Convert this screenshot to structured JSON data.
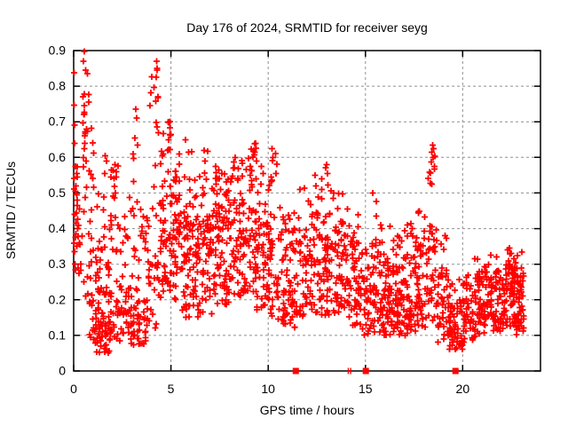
{
  "colors": {
    "marker": "#ff0000",
    "grid": "#8f8f8f",
    "axis": "#000000",
    "background": "#ffffff",
    "text": "#000000"
  },
  "chart_data": {
    "type": "scatter",
    "title": "Day 176 of 2024, SRMTID for receiver seyg",
    "xlabel": "GPS time / hours",
    "ylabel": "SRMTID / TECUs",
    "xlim": [
      0,
      24
    ],
    "ylim": [
      0,
      0.9
    ],
    "grid": true,
    "legend": "none",
    "marker": "plus",
    "marker_color": "#ff0000",
    "xticks": [
      {
        "label": "0",
        "v": 0
      },
      {
        "label": "5",
        "v": 5
      },
      {
        "label": "10",
        "v": 10
      },
      {
        "label": "15",
        "v": 15
      },
      {
        "label": "20",
        "v": 20
      }
    ],
    "yticks": [
      {
        "label": "0",
        "v": 0.0
      },
      {
        "label": "0.1",
        "v": 0.1
      },
      {
        "label": "0.2",
        "v": 0.2
      },
      {
        "label": "0.3",
        "v": 0.3
      },
      {
        "label": "0.4",
        "v": 0.4
      },
      {
        "label": "0.5",
        "v": 0.5
      },
      {
        "label": "0.6",
        "v": 0.6
      },
      {
        "label": "0.7",
        "v": 0.7
      },
      {
        "label": "0.8",
        "v": 0.8
      },
      {
        "label": "0.9",
        "v": 0.9
      }
    ],
    "axis_markers": {
      "squares_x_hours": [
        11.42,
        15.02,
        19.63
      ],
      "tick_pair_x_hours": [
        14.12,
        14.24
      ]
    },
    "point_generation": {
      "seed": 176,
      "columns_per_bin": 6,
      "bins": [
        [
          0.0,
          0.25,
          14,
          [
            [
              1.0,
              0.28,
              0.58
            ]
          ]
        ],
        [
          0.25,
          0.45,
          8,
          [
            [
              0.6,
              0.25,
              0.45
            ],
            [
              0.4,
              0.45,
              0.62
            ]
          ]
        ],
        [
          0.45,
          0.8,
          22,
          [
            [
              0.45,
              0.55,
              0.9
            ],
            [
              0.3,
              0.3,
              0.55
            ],
            [
              0.25,
              0.2,
              0.3
            ]
          ]
        ],
        [
          0.8,
          1.1,
          25,
          [
            [
              0.3,
              0.2,
              0.4
            ],
            [
              0.5,
              0.08,
              0.2
            ],
            [
              0.2,
              0.4,
              0.76
            ]
          ]
        ],
        [
          1.1,
          1.5,
          45,
          [
            [
              0.7,
              0.05,
              0.18
            ],
            [
              0.25,
              0.18,
              0.35
            ],
            [
              0.05,
              0.35,
              0.5
            ]
          ]
        ],
        [
          1.5,
          1.9,
          45,
          [
            [
              0.6,
              0.05,
              0.17
            ],
            [
              0.3,
              0.17,
              0.33
            ],
            [
              0.1,
              0.33,
              0.61
            ]
          ]
        ],
        [
          1.9,
          2.4,
          40,
          [
            [
              0.55,
              0.08,
              0.22
            ],
            [
              0.3,
              0.22,
              0.4
            ],
            [
              0.15,
              0.4,
              0.58
            ]
          ]
        ],
        [
          2.4,
          2.9,
          32,
          [
            [
              0.6,
              0.1,
              0.25
            ],
            [
              0.35,
              0.25,
              0.4
            ],
            [
              0.05,
              0.4,
              0.5
            ]
          ]
        ],
        [
          2.9,
          3.4,
          48,
          [
            [
              0.6,
              0.07,
              0.2
            ],
            [
              0.25,
              0.2,
              0.35
            ],
            [
              0.1,
              0.35,
              0.55
            ],
            [
              0.05,
              0.55,
              0.74
            ]
          ]
        ],
        [
          3.4,
          3.9,
          36,
          [
            [
              0.55,
              0.06,
              0.2
            ],
            [
              0.3,
              0.2,
              0.38
            ],
            [
              0.15,
              0.38,
              0.52
            ]
          ]
        ],
        [
          3.9,
          4.45,
          30,
          [
            [
              0.4,
              0.12,
              0.3
            ],
            [
              0.3,
              0.3,
              0.55
            ],
            [
              0.3,
              0.55,
              0.87
            ]
          ]
        ],
        [
          4.45,
          5.0,
          60,
          [
            [
              0.2,
              0.2,
              0.32
            ],
            [
              0.5,
              0.32,
              0.52
            ],
            [
              0.3,
              0.52,
              0.7
            ]
          ]
        ],
        [
          5.0,
          5.55,
          55,
          [
            [
              0.25,
              0.2,
              0.32
            ],
            [
              0.55,
              0.32,
              0.5
            ],
            [
              0.2,
              0.5,
              0.66
            ]
          ]
        ],
        [
          5.55,
          6.1,
          50,
          [
            [
              0.3,
              0.15,
              0.28
            ],
            [
              0.5,
              0.28,
              0.45
            ],
            [
              0.2,
              0.45,
              0.64
            ]
          ]
        ],
        [
          6.1,
          6.6,
          45,
          [
            [
              0.35,
              0.15,
              0.27
            ],
            [
              0.5,
              0.27,
              0.42
            ],
            [
              0.15,
              0.42,
              0.55
            ]
          ]
        ],
        [
          6.6,
          7.1,
          48,
          [
            [
              0.3,
              0.16,
              0.28
            ],
            [
              0.5,
              0.28,
              0.45
            ],
            [
              0.2,
              0.45,
              0.62
            ]
          ]
        ],
        [
          7.1,
          7.6,
          48,
          [
            [
              0.3,
              0.18,
              0.3
            ],
            [
              0.55,
              0.3,
              0.47
            ],
            [
              0.15,
              0.47,
              0.58
            ]
          ]
        ],
        [
          7.6,
          8.2,
          55,
          [
            [
              0.35,
              0.18,
              0.3
            ],
            [
              0.5,
              0.3,
              0.45
            ],
            [
              0.15,
              0.45,
              0.56
            ]
          ]
        ],
        [
          8.2,
          8.8,
          58,
          [
            [
              0.3,
              0.2,
              0.32
            ],
            [
              0.5,
              0.32,
              0.48
            ],
            [
              0.2,
              0.48,
              0.6
            ]
          ]
        ],
        [
          8.8,
          9.4,
          52,
          [
            [
              0.3,
              0.2,
              0.32
            ],
            [
              0.5,
              0.32,
              0.48
            ],
            [
              0.2,
              0.48,
              0.64
            ]
          ]
        ],
        [
          9.4,
          10.0,
          50,
          [
            [
              0.35,
              0.17,
              0.3
            ],
            [
              0.5,
              0.3,
              0.45
            ],
            [
              0.15,
              0.45,
              0.58
            ]
          ]
        ],
        [
          10.0,
          10.5,
          42,
          [
            [
              0.35,
              0.15,
              0.28
            ],
            [
              0.45,
              0.28,
              0.45
            ],
            [
              0.2,
              0.45,
              0.63
            ]
          ]
        ],
        [
          10.5,
          11.0,
          40,
          [
            [
              0.45,
              0.13,
              0.27
            ],
            [
              0.45,
              0.27,
              0.4
            ],
            [
              0.1,
              0.4,
              0.47
            ]
          ]
        ],
        [
          11.0,
          11.6,
          42,
          [
            [
              0.45,
              0.12,
              0.26
            ],
            [
              0.45,
              0.26,
              0.4
            ],
            [
              0.1,
              0.4,
              0.5
            ]
          ]
        ],
        [
          11.6,
          12.2,
          44,
          [
            [
              0.4,
              0.15,
              0.28
            ],
            [
              0.5,
              0.28,
              0.42
            ],
            [
              0.1,
              0.42,
              0.52
            ]
          ]
        ],
        [
          12.2,
          12.8,
          46,
          [
            [
              0.4,
              0.15,
              0.28
            ],
            [
              0.45,
              0.28,
              0.42
            ],
            [
              0.15,
              0.42,
              0.55
            ]
          ]
        ],
        [
          12.8,
          13.4,
          50,
          [
            [
              0.4,
              0.15,
              0.28
            ],
            [
              0.45,
              0.28,
              0.42
            ],
            [
              0.15,
              0.42,
              0.58
            ]
          ]
        ],
        [
          13.4,
          14.0,
          52,
          [
            [
              0.45,
              0.15,
              0.28
            ],
            [
              0.45,
              0.28,
              0.42
            ],
            [
              0.1,
              0.42,
              0.5
            ]
          ]
        ],
        [
          14.0,
          14.6,
          45,
          [
            [
              0.5,
              0.12,
              0.25
            ],
            [
              0.4,
              0.25,
              0.38
            ],
            [
              0.1,
              0.38,
              0.46
            ]
          ]
        ],
        [
          14.6,
          15.2,
          45,
          [
            [
              0.55,
              0.1,
              0.24
            ],
            [
              0.38,
              0.24,
              0.36
            ],
            [
              0.07,
              0.36,
              0.44
            ]
          ]
        ],
        [
          15.2,
          15.8,
          50,
          [
            [
              0.55,
              0.1,
              0.24
            ],
            [
              0.35,
              0.24,
              0.35
            ],
            [
              0.1,
              0.35,
              0.5
            ]
          ]
        ],
        [
          15.8,
          16.4,
          55,
          [
            [
              0.6,
              0.1,
              0.23
            ],
            [
              0.35,
              0.23,
              0.33
            ],
            [
              0.05,
              0.33,
              0.42
            ]
          ]
        ],
        [
          16.4,
          17.0,
          60,
          [
            [
              0.6,
              0.1,
              0.22
            ],
            [
              0.32,
              0.22,
              0.32
            ],
            [
              0.08,
              0.32,
              0.38
            ]
          ]
        ],
        [
          17.0,
          17.6,
          55,
          [
            [
              0.6,
              0.1,
              0.22
            ],
            [
              0.3,
              0.22,
              0.33
            ],
            [
              0.1,
              0.33,
              0.42
            ]
          ]
        ],
        [
          17.6,
          18.2,
          48,
          [
            [
              0.55,
              0.12,
              0.24
            ],
            [
              0.35,
              0.24,
              0.36
            ],
            [
              0.1,
              0.36,
              0.45
            ]
          ]
        ],
        [
          18.2,
          18.7,
          40,
          [
            [
              0.4,
              0.14,
              0.28
            ],
            [
              0.35,
              0.28,
              0.45
            ],
            [
              0.25,
              0.45,
              0.64
            ]
          ]
        ],
        [
          18.7,
          19.3,
          45,
          [
            [
              0.6,
              0.08,
              0.2
            ],
            [
              0.3,
              0.2,
              0.3
            ],
            [
              0.1,
              0.3,
              0.4
            ]
          ]
        ],
        [
          19.3,
          20.0,
          60,
          [
            [
              0.7,
              0.06,
              0.17
            ],
            [
              0.25,
              0.17,
              0.26
            ],
            [
              0.05,
              0.26,
              0.33
            ]
          ]
        ],
        [
          20.0,
          20.7,
          55,
          [
            [
              0.6,
              0.08,
              0.19
            ],
            [
              0.35,
              0.19,
              0.27
            ],
            [
              0.05,
              0.27,
              0.32
            ]
          ]
        ],
        [
          20.7,
          21.4,
          60,
          [
            [
              0.55,
              0.1,
              0.2
            ],
            [
              0.4,
              0.2,
              0.28
            ],
            [
              0.05,
              0.28,
              0.32
            ]
          ]
        ],
        [
          21.4,
          22.1,
          65,
          [
            [
              0.5,
              0.11,
              0.21
            ],
            [
              0.45,
              0.21,
              0.29
            ],
            [
              0.05,
              0.29,
              0.33
            ]
          ]
        ],
        [
          22.1,
          22.7,
          65,
          [
            [
              0.45,
              0.12,
              0.22
            ],
            [
              0.45,
              0.22,
              0.3
            ],
            [
              0.1,
              0.3,
              0.35
            ]
          ]
        ],
        [
          22.7,
          23.15,
          55,
          [
            [
              0.45,
              0.1,
              0.22
            ],
            [
              0.45,
              0.22,
              0.3
            ],
            [
              0.1,
              0.3,
              0.34
            ]
          ]
        ]
      ]
    },
    "outliers": [
      [
        0.03,
        0.838
      ],
      [
        0.02,
        0.747
      ],
      [
        0.05,
        0.69
      ],
      [
        0.04,
        0.64
      ],
      [
        0.1,
        0.575
      ],
      [
        0.15,
        0.555
      ],
      [
        0.12,
        0.52
      ],
      [
        0.08,
        0.505
      ],
      [
        0.18,
        0.48
      ],
      [
        0.05,
        0.44
      ],
      [
        0.12,
        0.415
      ],
      [
        0.2,
        0.4
      ],
      [
        0.1,
        0.375
      ],
      [
        0.16,
        0.35
      ],
      [
        0.07,
        0.3
      ],
      [
        0.55,
        0.897
      ],
      [
        0.5,
        0.87
      ],
      [
        0.62,
        0.845
      ],
      [
        0.48,
        0.77
      ],
      [
        0.55,
        0.745
      ],
      [
        0.52,
        0.72
      ],
      [
        0.6,
        0.672
      ],
      [
        0.58,
        0.64
      ],
      [
        0.5,
        0.6
      ],
      [
        0.65,
        0.59
      ],
      [
        0.78,
        0.755
      ],
      [
        1.62,
        0.605
      ],
      [
        1.68,
        0.59
      ],
      [
        1.6,
        0.555
      ],
      [
        2.12,
        0.58
      ],
      [
        2.18,
        0.545
      ],
      [
        2.15,
        0.5
      ],
      [
        3.2,
        0.735
      ],
      [
        3.25,
        0.71
      ],
      [
        3.15,
        0.655
      ],
      [
        3.28,
        0.635
      ],
      [
        4.27,
        0.87
      ],
      [
        4.3,
        0.845
      ],
      [
        4.25,
        0.825
      ],
      [
        4.33,
        0.77
      ],
      [
        4.28,
        0.685
      ],
      [
        4.35,
        0.67
      ],
      [
        4.95,
        0.7
      ],
      [
        5.0,
        0.665
      ],
      [
        5.75,
        0.65
      ],
      [
        5.9,
        0.615
      ],
      [
        6.7,
        0.62
      ],
      [
        6.75,
        0.59
      ],
      [
        7.3,
        0.575
      ],
      [
        8.3,
        0.6
      ],
      [
        9.35,
        0.64
      ],
      [
        9.3,
        0.615
      ],
      [
        9.4,
        0.59
      ],
      [
        9.65,
        0.575
      ],
      [
        9.75,
        0.555
      ],
      [
        10.2,
        0.625
      ],
      [
        10.25,
        0.6
      ],
      [
        12.4,
        0.55
      ],
      [
        12.45,
        0.52
      ],
      [
        13.0,
        0.58
      ],
      [
        13.05,
        0.555
      ],
      [
        15.38,
        0.5
      ],
      [
        17.4,
        0.4
      ],
      [
        18.45,
        0.635
      ],
      [
        18.5,
        0.625
      ],
      [
        18.42,
        0.615
      ],
      [
        18.48,
        0.6
      ],
      [
        18.55,
        0.575
      ],
      [
        18.4,
        0.525
      ],
      [
        19.1,
        0.38
      ],
      [
        21.2,
        0.265
      ],
      [
        22.4,
        0.345
      ],
      [
        22.5,
        0.33
      ]
    ]
  }
}
